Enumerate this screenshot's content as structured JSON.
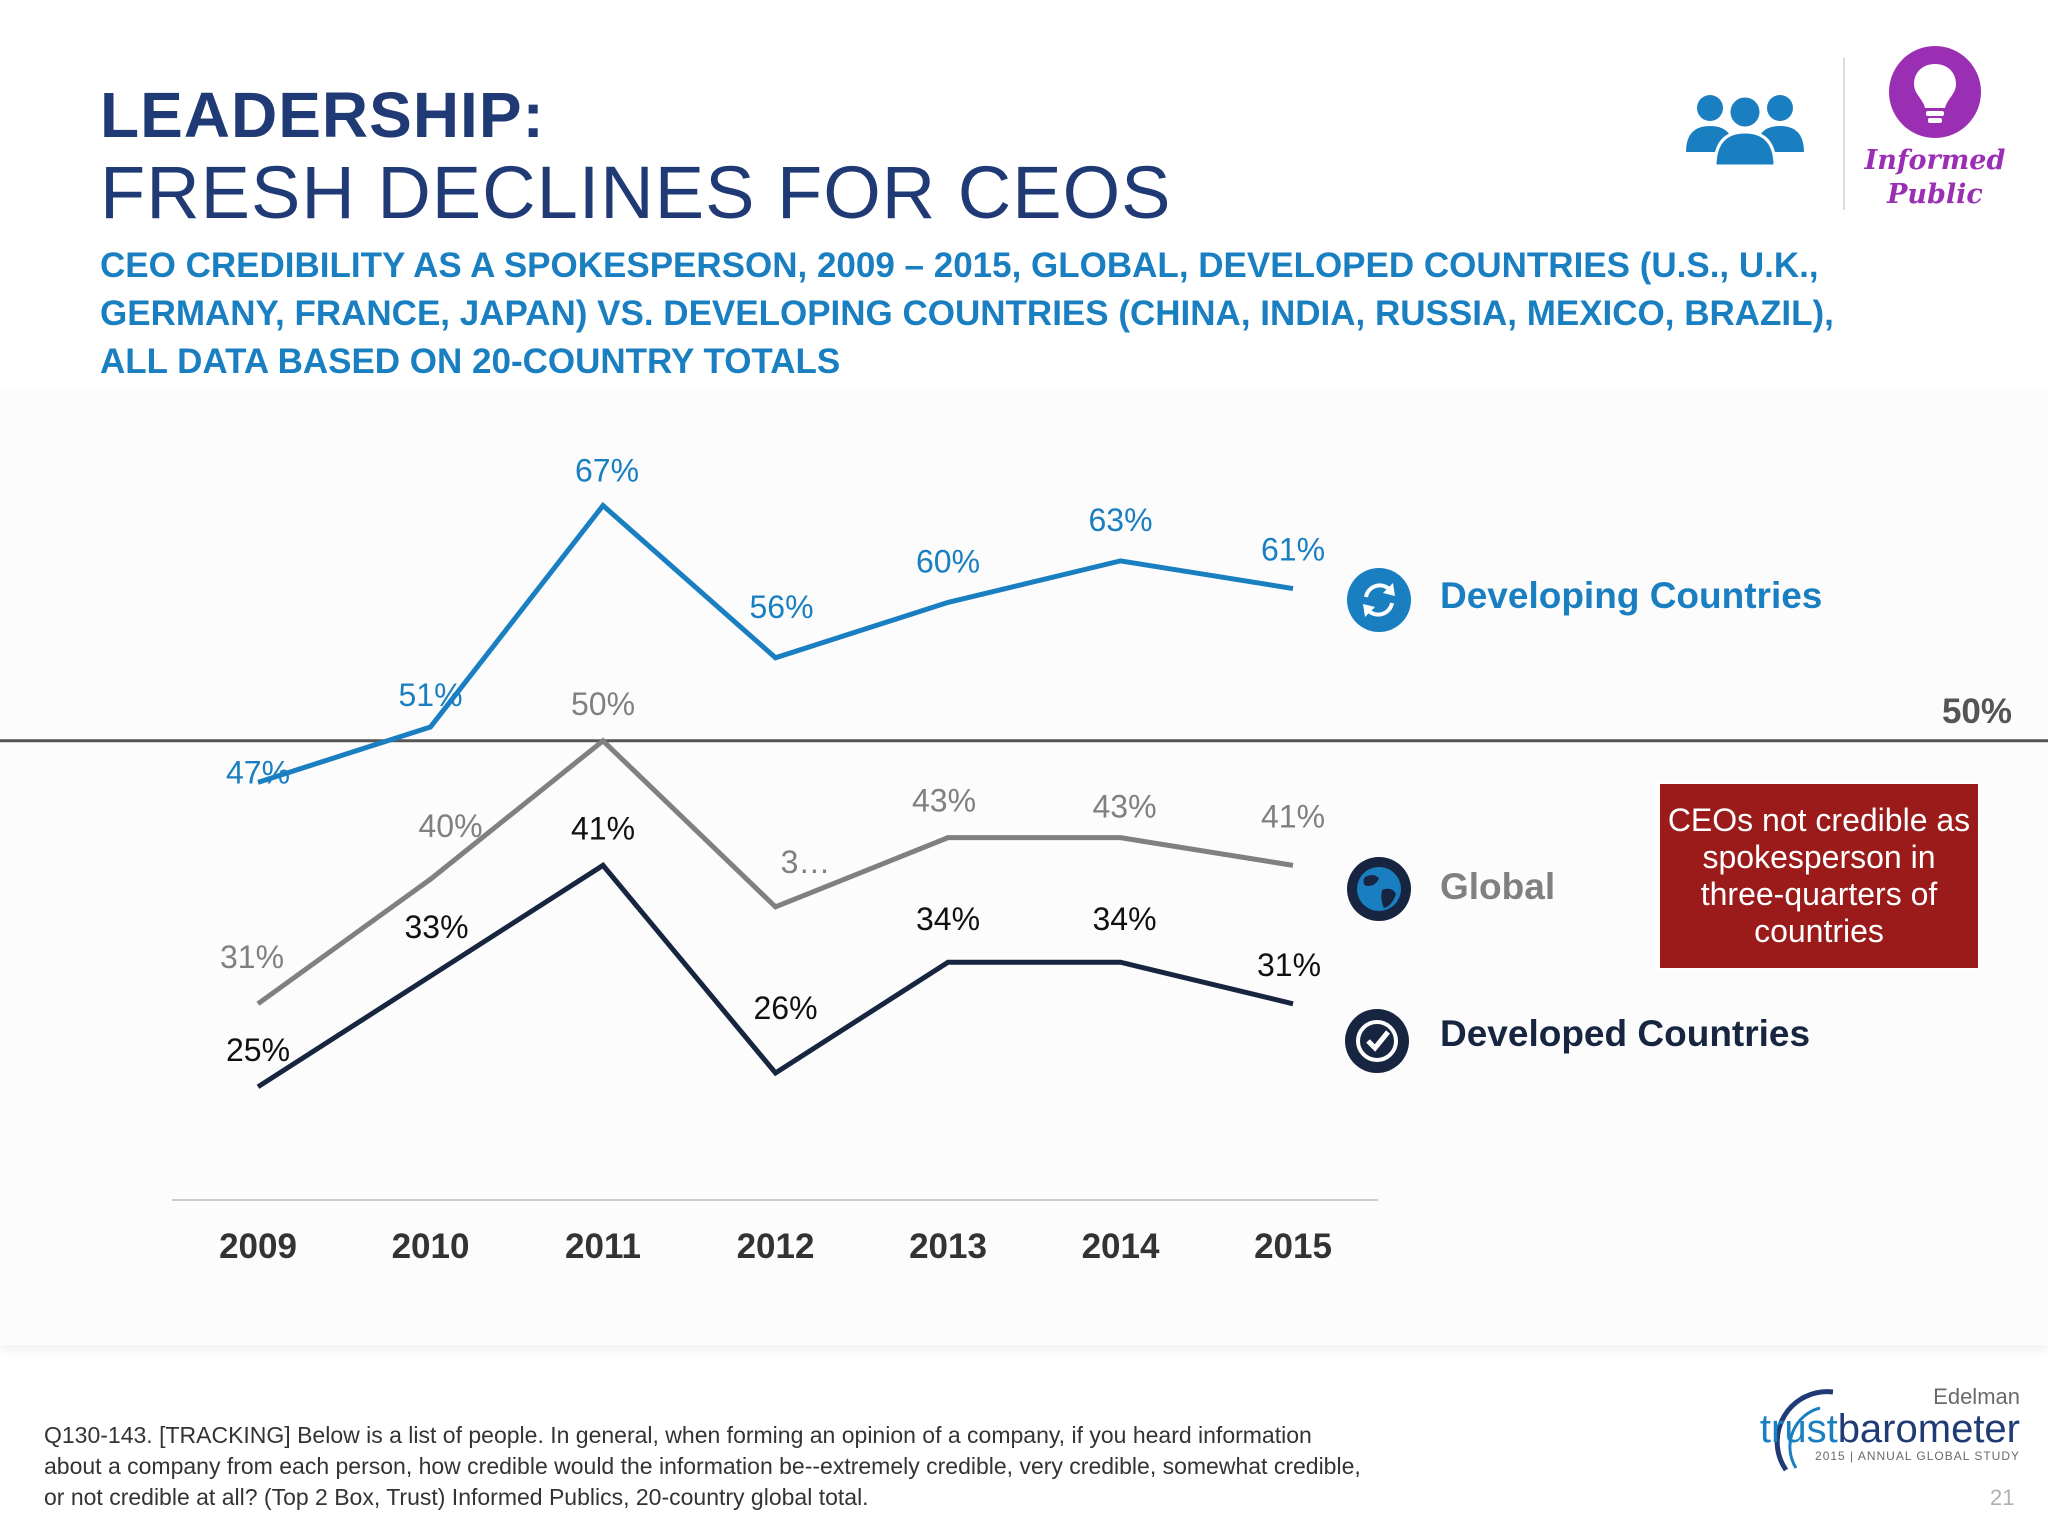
{
  "header": {
    "title_line1": "LEADERSHIP:",
    "title_line2": "FRESH DECLINES FOR CEOS",
    "subtitle": "CEO CREDIBILITY AS A SPOKESPERSON, 2009 – 2015, GLOBAL, DEVELOPED COUNTRIES (U.S., U.K., GERMANY, FRANCE, JAPAN) VS. DEVELOPING COUNTRIES (CHINA, INDIA, RUSSIA, MEXICO, BRAZIL), ALL DATA BASED ON 20-COUNTRY TOTALS"
  },
  "badge": {
    "line1": "Informed",
    "line2": "Public",
    "icon": "lightbulb-icon",
    "color": "#9a2fb3"
  },
  "people_icon": "people-group-icon",
  "chart_data": {
    "type": "line",
    "x": [
      "2009",
      "2010",
      "2011",
      "2012",
      "2013",
      "2014",
      "2015"
    ],
    "ylim": [
      20,
      70
    ],
    "reference_line": {
      "value": 50,
      "label": "50%"
    },
    "series": [
      {
        "name": "Developing Countries",
        "color": "#1a7fc1",
        "values": [
          47,
          51,
          67,
          56,
          60,
          63,
          61
        ],
        "labels": [
          "47%",
          "51%",
          "67%",
          "56%",
          "60%",
          "63%",
          "61%"
        ],
        "icon": "refresh-circle-icon"
      },
      {
        "name": "Global",
        "color": "#808080",
        "values": [
          31,
          40,
          50,
          38,
          43,
          43,
          41
        ],
        "labels": [
          "31%",
          "40%",
          "50%",
          "3…",
          "43%",
          "43%",
          "41%"
        ],
        "icon": "globe-icon"
      },
      {
        "name": "Developed Countries",
        "color": "#172540",
        "values": [
          25,
          33,
          41,
          26,
          34,
          34,
          31
        ],
        "labels": [
          "25%",
          "33%",
          "41%",
          "26%",
          "34%",
          "34%",
          "31%"
        ],
        "icon": "check-circle-icon"
      }
    ]
  },
  "callout": {
    "text": "CEOs not credible as spokesperson in three-quarters of countries",
    "color": "#9b1b1b"
  },
  "footnote": "Q130-143. [TRACKING] Below is a list of people. In general, when forming an opinion of a company, if you heard information about a company from each person, how credible would the information be--extremely credible, very credible, somewhat credible, or not credible at all? (Top 2 Box, Trust) Informed Publics, 20-country global total.",
  "logo": {
    "brand": "Edelman",
    "name_light": "trust",
    "name_bold": "barometer",
    "tagline": "2015 | ANNUAL GLOBAL STUDY"
  },
  "page_number": "21"
}
